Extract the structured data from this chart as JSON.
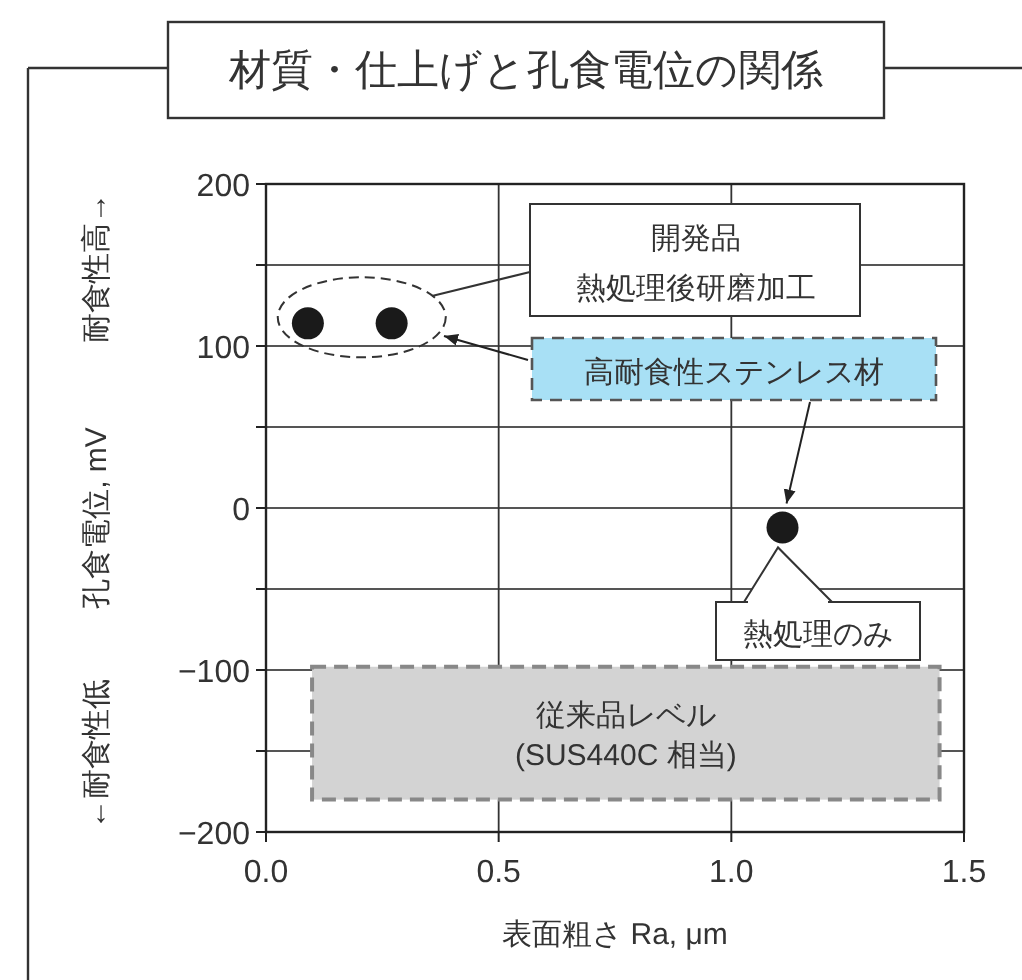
{
  "chart_data": {
    "type": "scatter",
    "title": "材質・仕上げと孔食電位の関係",
    "xlabel": "表面粗さ Ra, μm",
    "ylabel": "孔食電位, mV",
    "xlim": [
      0,
      1.5
    ],
    "xticks": [
      {
        "value": 0,
        "label": "0.0"
      },
      0.5,
      {
        "value": 1,
        "label": "1.0"
      },
      1.5
    ],
    "ylim": [
      -200,
      200
    ],
    "yticks": [
      {
        "value": -200,
        "label": "−200"
      },
      {
        "value": -150,
        "label": null
      },
      {
        "value": -100,
        "label": "−100"
      },
      {
        "value": -50,
        "label": null
      },
      0,
      {
        "value": 50,
        "label": null
      },
      100,
      {
        "value": 150,
        "label": null
      },
      200
    ],
    "grid": true,
    "marker": "circle",
    "x": [
      0.09,
      0.27,
      1.11
    ],
    "series": [
      {
        "color": "#1a1a1a",
        "values": [
          114,
          114,
          -12
        ]
      }
    ],
    "bands": [
      {
        "axis": "y",
        "from": -180,
        "to": -98,
        "color": "#d3d3d3",
        "label": "従来品レベル\n(SUS440C 相当)"
      }
    ],
    "annotations": [
      "開発品",
      "熱処理後研磨加工",
      "高耐食性ステンレス材",
      "熱処理のみ",
      "耐食性高→",
      "←耐食性低"
    ]
  }
}
